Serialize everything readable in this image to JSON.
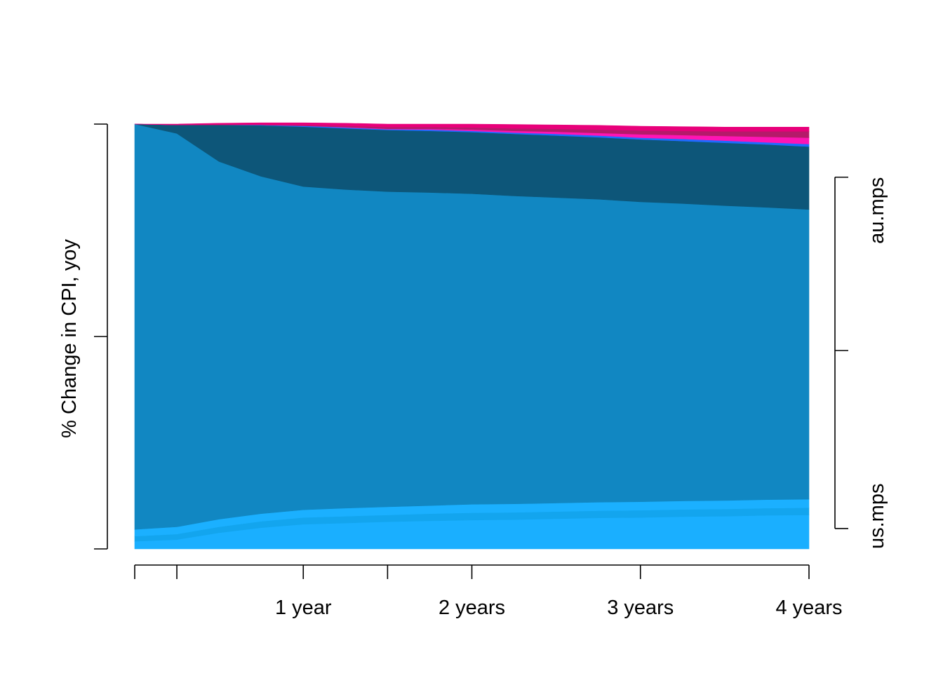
{
  "chart_data": {
    "type": "area",
    "title": "",
    "xlabel": "",
    "ylabel": "% Change in CPI, yoy",
    "x": [
      0,
      0.25,
      0.5,
      0.75,
      1,
      1.25,
      1.5,
      1.75,
      2,
      2.25,
      2.5,
      2.75,
      3,
      3.25,
      3.5,
      3.75,
      4
    ],
    "xlim": [
      0,
      4
    ],
    "x_ticks": [
      0,
      0.25,
      1,
      1.5,
      2,
      3,
      4
    ],
    "x_tick_labels": [
      {
        "x": 1,
        "label": "1 year"
      },
      {
        "x": 2,
        "label": "2 years"
      },
      {
        "x": 3,
        "label": "3 years"
      },
      {
        "x": 4,
        "label": "4 years"
      }
    ],
    "ylim": [
      0,
      1
    ],
    "stacked": true,
    "left_axis_ticks": [
      0,
      0.5,
      1
    ],
    "right_axis": {
      "ticks": [
        0.048,
        0.467,
        0.875
      ],
      "labels": [
        {
          "y": 0.0,
          "label": "us.mps"
        },
        {
          "y": 0.875,
          "label": "au.mps"
        }
      ]
    },
    "series": [
      {
        "color": "#1AAFFF",
        "values": [
          0.018,
          0.022,
          0.038,
          0.05,
          0.058,
          0.061,
          0.064,
          0.066,
          0.068,
          0.069,
          0.071,
          0.073,
          0.074,
          0.076,
          0.077,
          0.079,
          0.08
        ]
      },
      {
        "color": "#13A5EE",
        "values": [
          0.012,
          0.013,
          0.014,
          0.015,
          0.016,
          0.016,
          0.016,
          0.017,
          0.017,
          0.017,
          0.017,
          0.017,
          0.017,
          0.017,
          0.017,
          0.017,
          0.017
        ]
      },
      {
        "color": "#1BB0FF",
        "values": [
          0.016,
          0.017,
          0.018,
          0.018,
          0.018,
          0.019,
          0.019,
          0.019,
          0.02,
          0.02,
          0.02,
          0.02,
          0.02,
          0.02,
          0.02,
          0.02,
          0.02
        ]
      },
      {
        "color": "#1187C2",
        "values": [
          0.954,
          0.926,
          0.842,
          0.794,
          0.761,
          0.75,
          0.742,
          0.737,
          0.731,
          0.725,
          0.719,
          0.713,
          0.706,
          0.7,
          0.694,
          0.688,
          0.682
        ]
      },
      {
        "color": "#0D5679",
        "values": [
          0.0,
          0.02,
          0.086,
          0.12,
          0.141,
          0.144,
          0.145,
          0.145,
          0.145,
          0.146,
          0.146,
          0.146,
          0.147,
          0.147,
          0.148,
          0.148,
          0.148
        ]
      },
      {
        "color": "#1F6BFF",
        "values": [
          0.0,
          0.0,
          0.0,
          0.001,
          0.002,
          0.002,
          0.002,
          0.003,
          0.003,
          0.003,
          0.004,
          0.004,
          0.004,
          0.005,
          0.005,
          0.005,
          0.006
        ]
      },
      {
        "color": "#FF14B4",
        "values": [
          0.0,
          0.0,
          0.0,
          0.0,
          0.0,
          0.001,
          0.001,
          0.002,
          0.003,
          0.004,
          0.005,
          0.006,
          0.008,
          0.009,
          0.011,
          0.013,
          0.015
        ]
      },
      {
        "color": "#B51A6A",
        "values": [
          0.0,
          0.0,
          0.001,
          0.001,
          0.002,
          0.003,
          0.004,
          0.004,
          0.005,
          0.006,
          0.007,
          0.008,
          0.009,
          0.01,
          0.011,
          0.013,
          0.015
        ]
      },
      {
        "color": "#E8007A",
        "values": [
          0.0,
          0.002,
          0.003,
          0.004,
          0.005,
          0.006,
          0.007,
          0.007,
          0.008,
          0.009,
          0.009,
          0.01,
          0.01,
          0.01,
          0.01,
          0.01,
          0.01
        ]
      }
    ]
  }
}
